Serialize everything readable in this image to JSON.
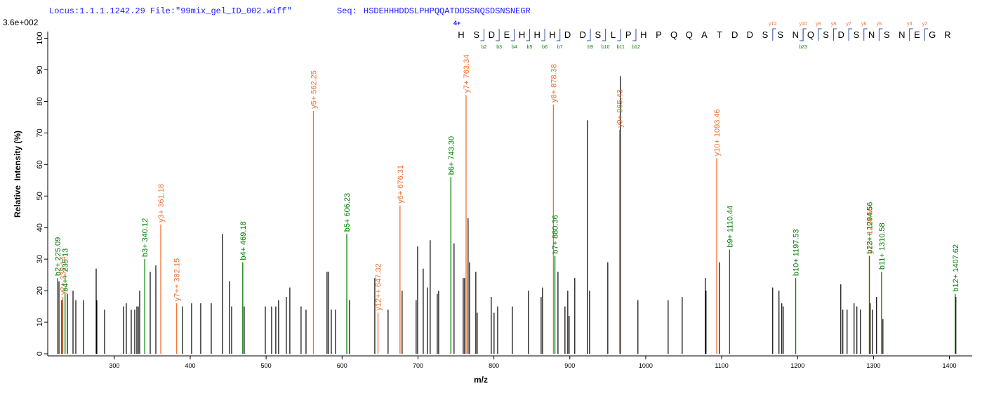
{
  "header": {
    "locus": "Locus:1.1.1.1242.29 File:\"99mix_gel_ID_002.wiff\"",
    "seq_label": "Seq:",
    "sequence": "HSDEHHHDDSLPHPQQATDDSSNQSDSNSNEGR"
  },
  "chart_data": {
    "type": "spectrum",
    "scale_label": "3.6e+002",
    "xlabel": "m/z",
    "ylabel": "Relative  Intensity (%)",
    "xlim": [
      216,
      1430
    ],
    "ylim": [
      0,
      101
    ],
    "xticks": [
      300,
      400,
      500,
      600,
      700,
      800,
      900,
      1000,
      1100,
      1200,
      1300,
      1400
    ],
    "yticks": [
      0,
      10,
      20,
      30,
      40,
      50,
      60,
      70,
      80,
      90,
      100
    ],
    "peaks": {
      "color": "#000000",
      "x": [
        227.1,
        230.8,
        238.2,
        245.6,
        249.3,
        259.4,
        276.1,
        277.0,
        287.2,
        312.1,
        315.8,
        322.3,
        326.9,
        329.7,
        331.6,
        333.4,
        347.3,
        354.7,
        389.8,
        401.8,
        413.8,
        427.7,
        442.5,
        451.7,
        454.5,
        471.1,
        498.9,
        507.2,
        512.7,
        516.4,
        526.6,
        531.2,
        546.0,
        552.5,
        580.2,
        582.1,
        585.8,
        591.3,
        609.8,
        643.1,
        660.6,
        679.1,
        697.6,
        699.5,
        706.9,
        712.4,
        716.1,
        725.4,
        727.2,
        747.5,
        759.6,
        761.4,
        766.0,
        767.9,
        776.2,
        778.0,
        796.5,
        800.2,
        804.9,
        824.3,
        845.5,
        862.2,
        864.0,
        884.4,
        893.6,
        897.3,
        899.1,
        906.5,
        923.2,
        926.0,
        950.0,
        966.6,
        989.7,
        1029.5,
        1048.0,
        1078.5,
        1079.4,
        1097.0,
        1167.2,
        1175.5,
        1179.2,
        1181.1,
        1256.9,
        1259.6,
        1265.2,
        1274.4,
        1278.1,
        1282.8,
        1295.7,
        1298.5,
        1304.0,
        1312.4,
        1408.5
      ],
      "values": [
        23,
        17,
        19,
        20,
        17,
        17,
        27,
        17,
        14,
        15,
        16,
        14,
        14,
        15,
        15,
        20,
        26,
        28,
        15,
        16,
        16,
        16,
        38,
        23,
        15,
        15,
        15,
        15,
        15,
        17,
        18,
        21,
        15,
        14,
        26,
        26,
        14,
        14,
        17,
        24,
        14,
        20,
        17,
        34,
        27,
        21,
        36,
        19,
        20,
        35,
        24,
        24,
        43,
        29,
        26,
        13,
        18,
        13,
        15,
        15,
        20,
        18,
        21,
        26,
        15,
        20,
        12,
        24,
        74,
        20,
        29,
        88,
        17,
        17,
        18,
        24,
        20,
        29,
        21,
        20,
        16,
        15,
        22,
        14,
        14,
        16,
        15,
        14,
        16,
        14,
        18,
        11,
        18
      ]
    },
    "annotated_peaks": [
      {
        "label": "b2+ 225.09",
        "x": 225.09,
        "value": 24,
        "color": "#008000"
      },
      {
        "label": "y2+ 232.14",
        "x": 232.14,
        "value": 18,
        "color": "#f07030"
      },
      {
        "label": "b4++ 235.13",
        "x": 235.13,
        "value": 19,
        "color": "#008000"
      },
      {
        "label": "b3+ 340.12",
        "x": 340.12,
        "value": 30,
        "color": "#008000"
      },
      {
        "label": "y3+ 361.18",
        "x": 361.18,
        "value": 41,
        "color": "#f07030"
      },
      {
        "label": "y7++ 382.15",
        "x": 382.15,
        "value": 16,
        "color": "#f07030"
      },
      {
        "label": "b4+ 469.18",
        "x": 469.18,
        "value": 29,
        "color": "#008000"
      },
      {
        "label": "y5+ 562.25",
        "x": 562.25,
        "value": 77,
        "color": "#f07030"
      },
      {
        "label": "b5+ 606.23",
        "x": 606.23,
        "value": 38,
        "color": "#008000"
      },
      {
        "label": "y12++ 647.32",
        "x": 647.32,
        "value": 13,
        "color": "#f07030"
      },
      {
        "label": "y6+ 676.31",
        "x": 676.31,
        "value": 47,
        "color": "#f07030"
      },
      {
        "label": "b6+ 743.30",
        "x": 743.3,
        "value": 56,
        "color": "#008000"
      },
      {
        "label": "y7+ 763.34",
        "x": 763.34,
        "value": 82,
        "color": "#f07030"
      },
      {
        "label": "y8+ 878.38",
        "x": 878.38,
        "value": 79,
        "color": "#f07030"
      },
      {
        "label": "b7+ 880.36",
        "x": 880.36,
        "value": 31,
        "color": "#008000"
      },
      {
        "label": "y9+ 965.43",
        "x": 965.43,
        "value": 71,
        "color": "#f07030"
      },
      {
        "label": "y10+ 1093.46",
        "x": 1093.46,
        "value": 62,
        "color": "#f07030"
      },
      {
        "label": "b9+ 1110.44",
        "x": 1110.44,
        "value": 33,
        "color": "#008000"
      },
      {
        "label": "b10+ 1197.53",
        "x": 1197.53,
        "value": 24,
        "color": "#008000"
      },
      {
        "label": "y12+ 1294.56",
        "x": 1294.56,
        "value": 31,
        "color": "#f07030"
      },
      {
        "label": "b23++ 1294.56",
        "x": 1294.56,
        "value": 31,
        "color": "#008000"
      },
      {
        "label": "b11+ 1310.58",
        "x": 1310.58,
        "value": 26,
        "color": "#008000"
      },
      {
        "label": "b12+ 1407.62",
        "x": 1407.62,
        "value": 19,
        "color": "#008000"
      }
    ],
    "sequence_map": {
      "charge": "4+",
      "b_color": "#008000",
      "y_color": "#f07030",
      "residues": [
        "H",
        "S",
        "D",
        "E",
        "H",
        "H",
        "H",
        "D",
        "D",
        "S",
        "L",
        "P",
        "H",
        "P",
        "Q",
        "Q",
        "A",
        "T",
        "D",
        "D",
        "S",
        "S",
        "N",
        "Q",
        "S",
        "D",
        "S",
        "N",
        "S",
        "N",
        "E",
        "G",
        "R"
      ],
      "b_ions": [
        {
          "label": "b2",
          "site": 2
        },
        {
          "label": "b3",
          "site": 3
        },
        {
          "label": "b4",
          "site": 4
        },
        {
          "label": "b5",
          "site": 5
        },
        {
          "label": "b6",
          "site": 6
        },
        {
          "label": "b7",
          "site": 7
        },
        {
          "label": "b9",
          "site": 9
        },
        {
          "label": "b10",
          "site": 10
        },
        {
          "label": "b11",
          "site": 11
        },
        {
          "label": "b12",
          "site": 12
        },
        {
          "label": "b23",
          "site": 23
        }
      ],
      "y_ions": [
        {
          "label": "y12",
          "site": 21
        },
        {
          "label": "y10",
          "site": 23
        },
        {
          "label": "y9",
          "site": 24
        },
        {
          "label": "y8",
          "site": 25
        },
        {
          "label": "y7",
          "site": 26
        },
        {
          "label": "y6",
          "site": 27
        },
        {
          "label": "y5",
          "site": 28
        },
        {
          "label": "y3",
          "site": 30
        },
        {
          "label": "y2",
          "site": 31
        }
      ]
    }
  }
}
